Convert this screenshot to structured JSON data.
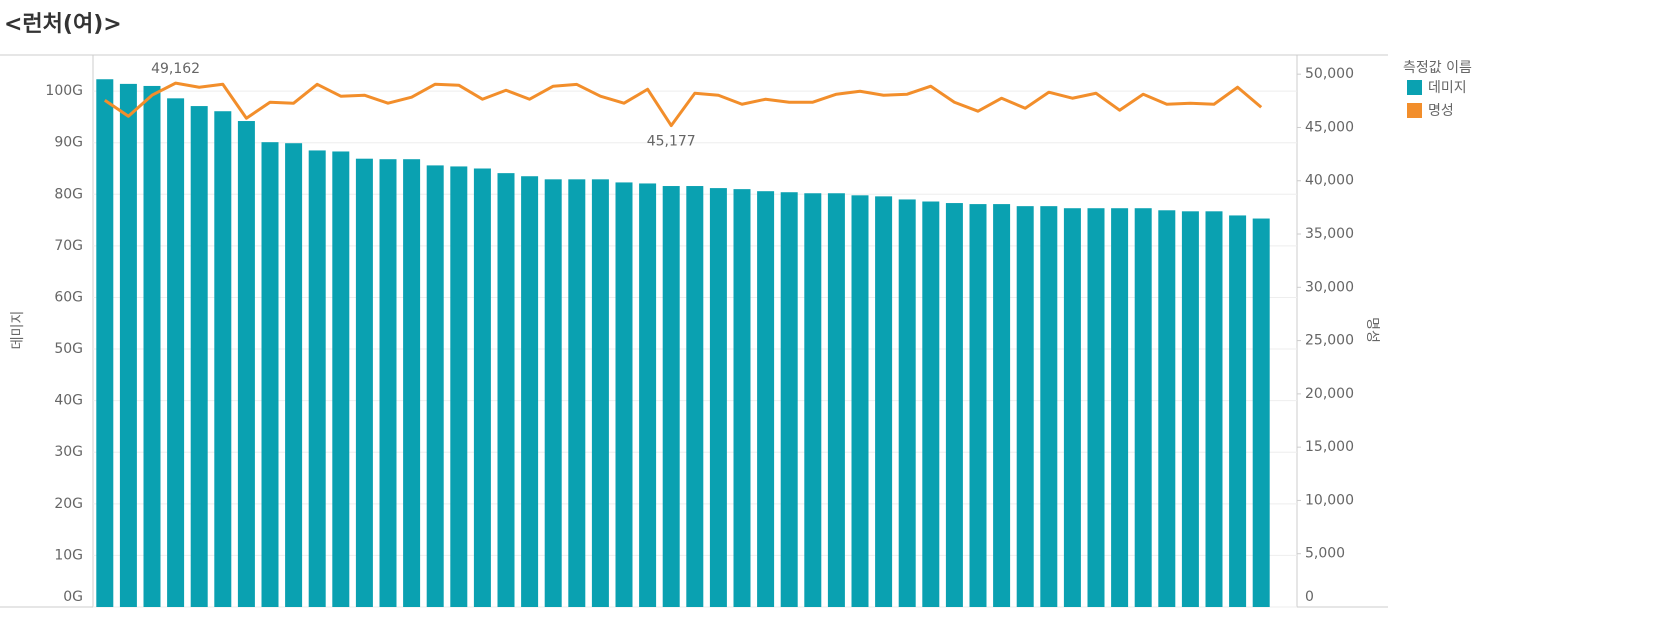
{
  "chart_data": {
    "type": "bar",
    "title": "<런처(여)>",
    "y_label": "데미지",
    "y2_label": "명성",
    "legend_title": "측정값 이름",
    "grid": true,
    "categories": [
      null,
      null,
      null,
      null,
      null,
      null,
      null,
      null,
      null,
      null,
      null,
      null,
      null,
      null,
      null,
      null,
      null,
      null,
      null,
      null,
      null,
      null,
      null,
      null,
      null,
      null,
      null,
      null,
      null,
      null,
      null,
      null,
      null,
      null,
      null,
      null,
      null,
      null,
      null,
      null,
      null,
      null,
      null,
      null,
      null,
      null,
      null,
      null,
      null,
      null
    ],
    "ylim": [
      0,
      107
    ],
    "yticks": [
      {
        "value": 0,
        "label": "0G"
      },
      {
        "value": 10,
        "label": "10G"
      },
      {
        "value": 20,
        "label": "20G"
      },
      {
        "value": 30,
        "label": "30G"
      },
      {
        "value": 40,
        "label": "40G"
      },
      {
        "value": 50,
        "label": "50G"
      },
      {
        "value": 60,
        "label": "60G"
      },
      {
        "value": 70,
        "label": "70G"
      },
      {
        "value": 80,
        "label": "80G"
      },
      {
        "value": 90,
        "label": "90G"
      },
      {
        "value": 100,
        "label": "100G"
      }
    ],
    "y2lim": [
      0,
      51800
    ],
    "y2ticks": [
      0,
      {
        "value": 5000,
        "label": "5,000"
      },
      {
        "value": 10000,
        "label": "10,000"
      },
      {
        "value": 15000,
        "label": "15,000"
      },
      {
        "value": 20000,
        "label": "20,000"
      },
      {
        "value": 25000,
        "label": "25,000"
      },
      {
        "value": 30000,
        "label": "30,000"
      },
      {
        "value": 35000,
        "label": "35,000"
      },
      {
        "value": 40000,
        "label": "40,000"
      },
      {
        "value": 45000,
        "label": "45,000"
      },
      {
        "value": 50000,
        "label": "50,000"
      }
    ],
    "series": [
      {
        "name": "데미지",
        "color": "#0aa1b1",
        "values": [
          102.3,
          101.4,
          101.0,
          98.6,
          97.1,
          96.1,
          94.2,
          90.1,
          89.9,
          88.5,
          88.3,
          86.9,
          86.8,
          86.8,
          85.6,
          85.4,
          85.0,
          84.1,
          83.5,
          82.9,
          82.9,
          82.9,
          82.3,
          82.1,
          81.6,
          81.6,
          81.2,
          81.0,
          80.6,
          80.4,
          80.2,
          80.2,
          79.8,
          79.6,
          79.0,
          78.6,
          78.3,
          78.1,
          78.1,
          77.7,
          77.7,
          77.3,
          77.3,
          77.3,
          77.3,
          76.9,
          76.7,
          76.7,
          75.9,
          75.3
        ]
      },
      {
        "name": "명성",
        "color": "#f28e2b",
        "type": "line",
        "axis": "y2",
        "values": [
          47557,
          46056,
          48026,
          49162,
          48776,
          49057,
          45868,
          47369,
          47275,
          49050,
          47932,
          48026,
          47275,
          47838,
          49060,
          48964,
          47650,
          48495,
          47650,
          48870,
          49040,
          47932,
          47275,
          48588,
          45177,
          48213,
          48026,
          47181,
          47650,
          47369,
          47369,
          48119,
          48401,
          48026,
          48119,
          48870,
          47369,
          46525,
          47744,
          46806,
          48307,
          47744,
          48213,
          46619,
          48119,
          47181,
          47275,
          47181,
          48776,
          46900
        ],
        "value_labels": [
          null,
          null,
          null,
          "49,162",
          null,
          null,
          null,
          null,
          null,
          null,
          null,
          null,
          null,
          null,
          null,
          null,
          null,
          null,
          null,
          null,
          null,
          null,
          null,
          null,
          "45,177",
          null,
          null,
          null,
          null,
          null,
          null,
          null,
          null,
          null,
          null,
          null,
          null,
          null,
          null,
          null,
          null,
          null,
          null,
          null,
          null,
          null,
          null,
          null,
          null,
          null
        ]
      }
    ]
  }
}
